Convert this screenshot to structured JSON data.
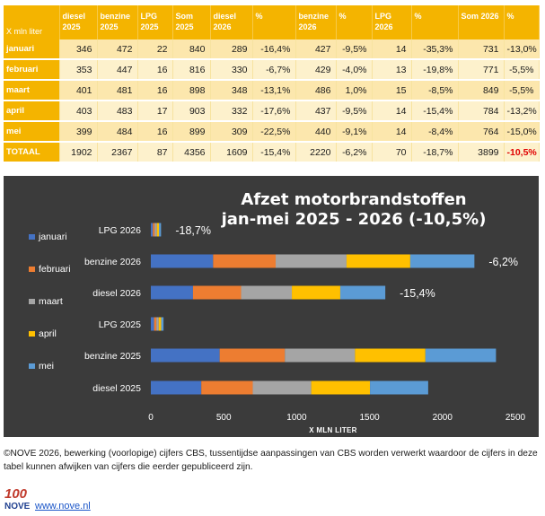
{
  "table": {
    "corner_label": "X mln liter",
    "headers": [
      "diesel 2025",
      "benzine 2025",
      "LPG 2025",
      "Som 2025",
      "diesel 2026",
      "%",
      "benzine 2026",
      "%",
      "LPG 2026",
      "%",
      "Som 2026",
      "%"
    ],
    "rows": [
      {
        "month": "januari",
        "cells": [
          "346",
          "472",
          "22",
          "840",
          "289",
          "-16,4%",
          "427",
          "-9,5%",
          "14",
          "-35,3%",
          "731",
          "-13,0%"
        ]
      },
      {
        "month": "februari",
        "cells": [
          "353",
          "447",
          "16",
          "816",
          "330",
          "-6,7%",
          "429",
          "-4,0%",
          "13",
          "-19,8%",
          "771",
          "-5,5%"
        ]
      },
      {
        "month": "maart",
        "cells": [
          "401",
          "481",
          "16",
          "898",
          "348",
          "-13,1%",
          "486",
          "1,0%",
          "15",
          "-8,5%",
          "849",
          "-5,5%"
        ]
      },
      {
        "month": "april",
        "cells": [
          "403",
          "483",
          "17",
          "903",
          "332",
          "-17,6%",
          "437",
          "-9,5%",
          "14",
          "-15,4%",
          "784",
          "-13,2%"
        ]
      },
      {
        "month": "mei",
        "cells": [
          "399",
          "484",
          "16",
          "899",
          "309",
          "-22,5%",
          "440",
          "-9,1%",
          "14",
          "-8,4%",
          "764",
          "-15,0%"
        ]
      }
    ],
    "total": {
      "month": "TOTAAL",
      "cells": [
        "1902",
        "2367",
        "87",
        "4356",
        "1609",
        "-15,4%",
        "2220",
        "-6,2%",
        "70",
        "-18,7%",
        "3899",
        "-10,5%"
      ]
    }
  },
  "chart_data": {
    "type": "bar",
    "orientation": "horizontal",
    "stacked": true,
    "title": "Afzet motorbrandstoffen",
    "subtitle": "jan-mei 2025 - 2026 (-10,5%)",
    "xlabel": "X MLN LITER",
    "xlim": [
      0,
      2500
    ],
    "xticks": [
      0,
      500,
      1000,
      1500,
      2000,
      2500
    ],
    "categories": [
      "LPG 2026",
      "benzine 2026",
      "diesel 2026",
      "LPG 2025",
      "benzine 2025",
      "diesel 2025"
    ],
    "series": [
      {
        "name": "januari",
        "color": "#4472c4",
        "values": [
          14,
          427,
          289,
          22,
          472,
          346
        ]
      },
      {
        "name": "februari",
        "color": "#ed7d31",
        "values": [
          13,
          429,
          330,
          16,
          447,
          353
        ]
      },
      {
        "name": "maart",
        "color": "#a5a5a5",
        "values": [
          15,
          486,
          348,
          16,
          481,
          401
        ]
      },
      {
        "name": "april",
        "color": "#ffc000",
        "values": [
          14,
          437,
          332,
          17,
          483,
          403
        ]
      },
      {
        "name": "mei",
        "color": "#5b9bd5",
        "values": [
          14,
          440,
          309,
          16,
          484,
          399
        ]
      }
    ],
    "annotations": [
      {
        "category": "LPG 2026",
        "text": "-18,7%"
      },
      {
        "category": "benzine 2026",
        "text": "-6,2%"
      },
      {
        "category": "diesel 2026",
        "text": "-15,4%"
      }
    ],
    "legend_position": "left",
    "grid": false,
    "background": "#3b3b3b"
  },
  "footer": {
    "note": "©NOVE 2026, bewerking (voorlopige) cijfers CBS, tussentijdse aanpassingen van CBS worden verwerkt waardoor de cijfers in deze tabel kunnen afwijken van cijfers die eerder gepubliceerd zijn.",
    "logo_text": "100",
    "logo_sub": "NOVE",
    "link": "www.nove.nl"
  }
}
